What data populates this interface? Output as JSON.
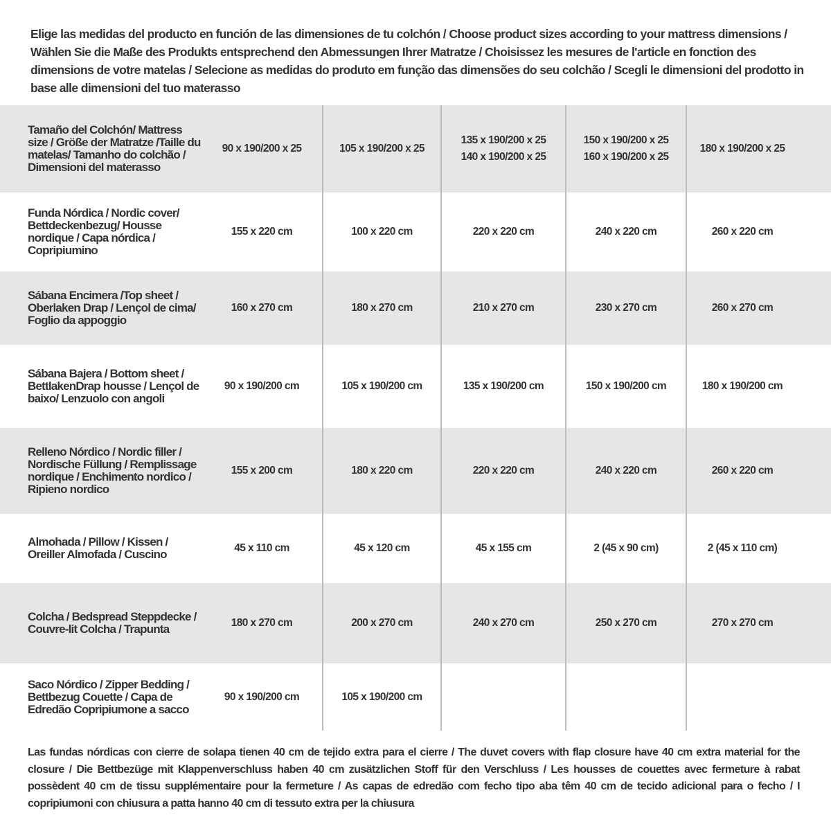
{
  "intro": "Elige las medidas del producto en función de las dimensiones de tu colchón / Choose product sizes according to your mattress dimensions / Wählen Sie die Maße des Produkts entsprechend den Abmessungen Ihrer Matratze / Choisissez les mesures de l'article en fonction des dimensions de votre matelas / Selecione as medidas do produto em função das dimensões do seu colchão / Scegli le dimensioni del prodotto in base alle dimensioni del tuo materasso",
  "rows": [
    {
      "label": "Tamaño del Colchón/ Mattress size / Größe der Matratze /Taille du matelas/ Tamanho do colchão / Dimensioni del materasso",
      "values": [
        "90 x 190/200 x 25",
        "105 x 190/200 x 25",
        "135 x 190/200 x 25\n140 x 190/200 x 25",
        "150 x 190/200 x 25\n160 x 190/200 x 25",
        "180 x 190/200 x 25"
      ]
    },
    {
      "label": "Funda Nórdica /  Nordic cover/ Bettdeckenbezug/ Housse nordique  / Capa nórdica / Copripiumino",
      "values": [
        "155 x 220 cm",
        "100 x 220 cm",
        "220 x 220 cm",
        "240 x 220 cm",
        "260 x 220 cm"
      ]
    },
    {
      "label": "Sábana Encimera /Top sheet / Oberlaken Drap / Lençol de cima/ Foglio da appoggio",
      "values": [
        "160 x 270 cm",
        "180 x 270 cm",
        "210 x 270 cm",
        "230 x 270 cm",
        "260 x 270 cm"
      ]
    },
    {
      "label": "Sábana Bajera / Bottom sheet / BettlakenDrap housse / Lençol de baixo/ Lenzuolo con angoli",
      "values": [
        "90 x 190/200 cm",
        "105 x 190/200 cm",
        "135 x 190/200 cm",
        "150 x 190/200 cm",
        "180 x 190/200 cm"
      ]
    },
    {
      "label": "Relleno Nórdico / Nordic filler / Nordische Füllung / Remplissage nordique / Enchimento nordico / Ripieno nordico",
      "values": [
        "155 x 200 cm",
        "180 x 220 cm",
        "220 x 220 cm",
        "240 x 220 cm",
        "260 x 220 cm"
      ]
    },
    {
      "label": "Almohada  / Pillow / Kissen / Oreiller Almofada / Cuscino",
      "values": [
        "45 x 110 cm",
        "45 x 120 cm",
        "45 x 155 cm",
        "2 (45 x 90 cm)",
        "2 (45 x 110 cm)"
      ]
    },
    {
      "label": "Colcha / Bedspread Steppdecke / Couvre-lit Colcha / Trapunta",
      "values": [
        "180 x 270 cm",
        "200 x 270 cm",
        "240 x 270 cm",
        "250 x 270 cm",
        "270 x 270 cm"
      ]
    },
    {
      "label": "Saco Nórdico / Zipper Bedding / Bettbezug Couette  / Capa de Edredão Copripiumone a sacco",
      "values": [
        "90 x 190/200 cm",
        "105 x 190/200 cm",
        "",
        "",
        ""
      ]
    }
  ],
  "footnote": "Las fundas nórdicas con cierre de solapa tienen 40 cm de tejido extra para el cierre  / The duvet covers with flap closure have 40 cm extra material for the closure / Die Bettbezüge mit Klappenverschluss haben 40 cm zusätzlichen Stoff für den Verschluss / Les housses de couettes avec fermeture à rabat possèdent 40 cm de tissu supplémentaire pour la fermeture / As capas de edredão com fecho tipo aba têm 40 cm de tecido adicional para o fecho / I copripiumoni con chiusura a patta hanno 40 cm di tessuto extra per la chiusura",
  "colors": {
    "row_shade": "#e6e6e8",
    "text": "#333333",
    "divider": "#bdbdbd"
  }
}
